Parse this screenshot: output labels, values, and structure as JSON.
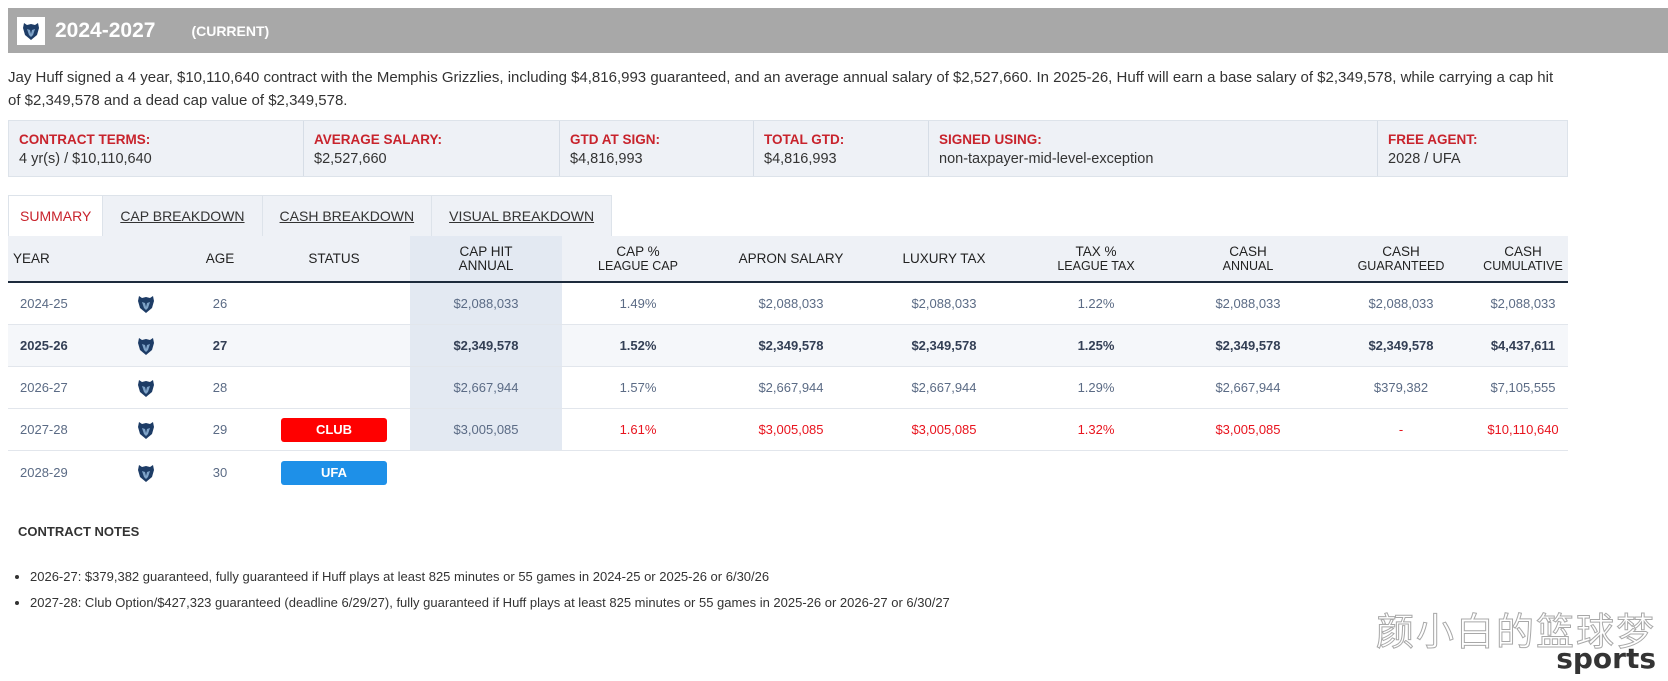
{
  "header": {
    "title": "2024-2027",
    "tag": "(CURRENT)",
    "team_logo": "grizzlies-bear-icon",
    "bar_color": "#a8a8a8"
  },
  "summary": "Jay Huff signed a 4 year, $10,110,640 contract with the Memphis Grizzlies, including $4,816,993 guaranteed, and an average annual salary of $2,527,660. In 2025-26, Huff will earn a base salary of $2,349,578, while carrying a cap hit of $2,349,578 and a dead cap value of $2,349,578.",
  "terms": [
    {
      "label": "CONTRACT TERMS:",
      "value": "4 yr(s) / $10,110,640"
    },
    {
      "label": "AVERAGE SALARY:",
      "value": "$2,527,660"
    },
    {
      "label": "GTD AT SIGN:",
      "value": "$4,816,993"
    },
    {
      "label": "TOTAL GTD:",
      "value": "$4,816,993"
    },
    {
      "label": "SIGNED USING:",
      "value": "non-taxpayer-mid-level-exception"
    },
    {
      "label": "FREE AGENT:",
      "value": "2028 / UFA"
    }
  ],
  "tabs": [
    "SUMMARY",
    "CAP BREAKDOWN",
    "CASH BREAKDOWN",
    "VISUAL BREAKDOWN"
  ],
  "columns": {
    "year": "YEAR",
    "age": "AGE",
    "status": "STATUS",
    "cap_hit": [
      "CAP HIT",
      "ANNUAL"
    ],
    "cap_pct": [
      "CAP %",
      "LEAGUE CAP"
    ],
    "apron": "APRON SALARY",
    "lux": "LUXURY TAX",
    "tax_pct": [
      "TAX %",
      "LEAGUE TAX"
    ],
    "cash_annual": [
      "CASH",
      "ANNUAL"
    ],
    "cash_gtd": [
      "CASH",
      "GUARANTEED"
    ],
    "cash_cum": [
      "CASH",
      "CUMULATIVE"
    ]
  },
  "rows": [
    {
      "year": "2024-25",
      "age": "26",
      "status": "",
      "cap_hit": "$2,088,033",
      "cap_pct": "1.49%",
      "apron": "$2,088,033",
      "lux": "$2,088,033",
      "tax_pct": "1.22%",
      "cash_annual": "$2,088,033",
      "cash_gtd": "$2,088,033",
      "cash_cum": "$2,088,033"
    },
    {
      "year": "2025-26",
      "age": "27",
      "status": "",
      "cap_hit": "$2,349,578",
      "cap_pct": "1.52%",
      "apron": "$2,349,578",
      "lux": "$2,349,578",
      "tax_pct": "1.25%",
      "cash_annual": "$2,349,578",
      "cash_gtd": "$2,349,578",
      "cash_cum": "$4,437,611"
    },
    {
      "year": "2026-27",
      "age": "28",
      "status": "",
      "cap_hit": "$2,667,944",
      "cap_pct": "1.57%",
      "apron": "$2,667,944",
      "lux": "$2,667,944",
      "tax_pct": "1.29%",
      "cash_annual": "$2,667,944",
      "cash_gtd": "$379,382",
      "cash_cum": "$7,105,555"
    },
    {
      "year": "2027-28",
      "age": "29",
      "status": "CLUB",
      "cap_hit": "$3,005,085",
      "cap_pct": "1.61%",
      "apron": "$3,005,085",
      "lux": "$3,005,085",
      "tax_pct": "1.32%",
      "cash_annual": "$3,005,085",
      "cash_gtd": "-",
      "cash_cum": "$10,110,640"
    },
    {
      "year": "2028-29",
      "age": "30",
      "status": "UFA"
    }
  ],
  "status_colors": {
    "CLUB": "#ff0000",
    "UFA": "#1e90e8"
  },
  "accent_red": "#c8232c",
  "notes_title": "CONTRACT NOTES",
  "notes": [
    "2026-27: $379,382 guaranteed, fully guaranteed if Huff plays at least 825 minutes or 55 games in 2024-25 or 2025-26 or 6/30/26",
    "2027-28: Club Option/$427,323 guaranteed (deadline 6/29/27), fully guaranteed if Huff plays at least 825 minutes or 55 games in 2025-26 or 2026-27 or 6/30/27"
  ],
  "watermark": {
    "cn": "颜小白的篮球梦",
    "en": "sports"
  }
}
